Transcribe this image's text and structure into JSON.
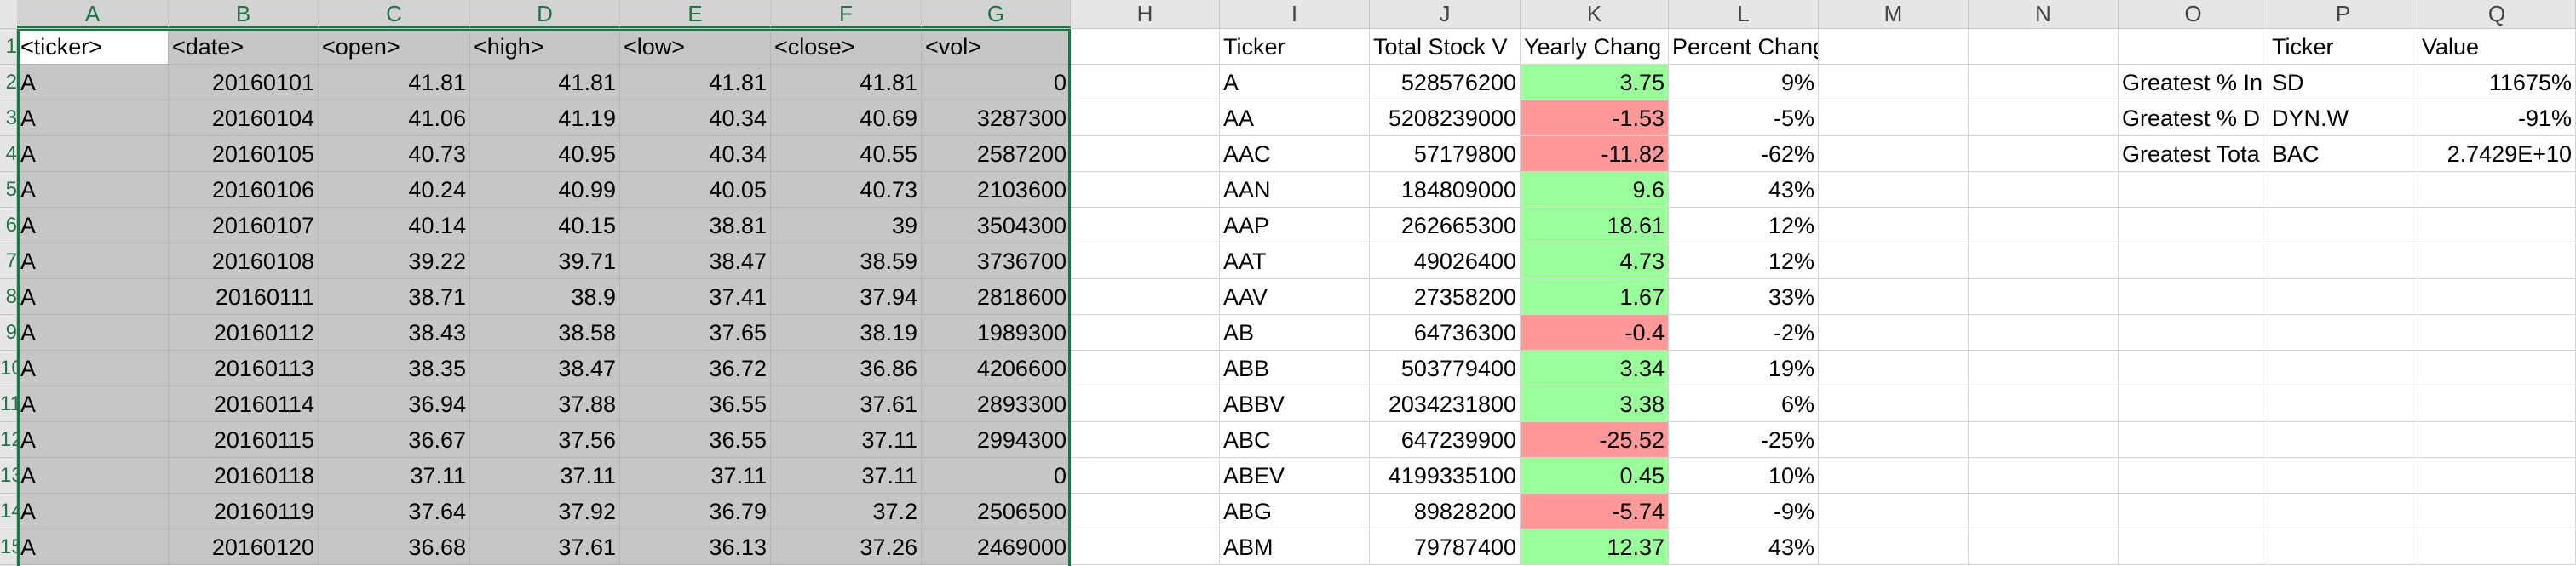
{
  "columns": [
    "A",
    "B",
    "C",
    "D",
    "E",
    "F",
    "G",
    "H",
    "I",
    "J",
    "K",
    "L",
    "M",
    "N",
    "O",
    "P",
    "Q"
  ],
  "row_numbers": [
    "1",
    "2",
    "3",
    "4",
    "5",
    "6",
    "7",
    "8",
    "9",
    "10",
    "11",
    "12",
    "13",
    "14",
    "15"
  ],
  "stock_table": {
    "headers": [
      "<ticker>",
      "<date>",
      "<open>",
      "<high>",
      "<low>",
      "<close>",
      "<vol>"
    ],
    "rows": [
      [
        "A",
        "20160101",
        "41.81",
        "41.81",
        "41.81",
        "41.81",
        "0"
      ],
      [
        "A",
        "20160104",
        "41.06",
        "41.19",
        "40.34",
        "40.69",
        "3287300"
      ],
      [
        "A",
        "20160105",
        "40.73",
        "40.95",
        "40.34",
        "40.55",
        "2587200"
      ],
      [
        "A",
        "20160106",
        "40.24",
        "40.99",
        "40.05",
        "40.73",
        "2103600"
      ],
      [
        "A",
        "20160107",
        "40.14",
        "40.15",
        "38.81",
        "39",
        "3504300"
      ],
      [
        "A",
        "20160108",
        "39.22",
        "39.71",
        "38.47",
        "38.59",
        "3736700"
      ],
      [
        "A",
        "20160111",
        "38.71",
        "38.9",
        "37.41",
        "37.94",
        "2818600"
      ],
      [
        "A",
        "20160112",
        "38.43",
        "38.58",
        "37.65",
        "38.19",
        "1989300"
      ],
      [
        "A",
        "20160113",
        "38.35",
        "38.47",
        "36.72",
        "36.86",
        "4206600"
      ],
      [
        "A",
        "20160114",
        "36.94",
        "37.88",
        "36.55",
        "37.61",
        "2893300"
      ],
      [
        "A",
        "20160115",
        "36.67",
        "37.56",
        "36.55",
        "37.11",
        "2994300"
      ],
      [
        "A",
        "20160118",
        "37.11",
        "37.11",
        "37.11",
        "37.11",
        "0"
      ],
      [
        "A",
        "20160119",
        "37.64",
        "37.92",
        "36.79",
        "37.2",
        "2506500"
      ],
      [
        "A",
        "20160120",
        "36.68",
        "37.61",
        "36.13",
        "37.26",
        "2469000"
      ]
    ]
  },
  "summary_table": {
    "headers": [
      "Ticker",
      "Total Stock V",
      "Yearly Chang",
      "Percent Change"
    ],
    "rows": [
      {
        "ticker": "A",
        "total": "528576200",
        "change": "3.75",
        "pct": "9%",
        "dir": "pos"
      },
      {
        "ticker": "AA",
        "total": "5208239000",
        "change": "-1.53",
        "pct": "-5%",
        "dir": "neg"
      },
      {
        "ticker": "AAC",
        "total": "57179800",
        "change": "-11.82",
        "pct": "-62%",
        "dir": "neg"
      },
      {
        "ticker": "AAN",
        "total": "184809000",
        "change": "9.6",
        "pct": "43%",
        "dir": "pos"
      },
      {
        "ticker": "AAP",
        "total": "262665300",
        "change": "18.61",
        "pct": "12%",
        "dir": "pos"
      },
      {
        "ticker": "AAT",
        "total": "49026400",
        "change": "4.73",
        "pct": "12%",
        "dir": "pos"
      },
      {
        "ticker": "AAV",
        "total": "27358200",
        "change": "1.67",
        "pct": "33%",
        "dir": "pos"
      },
      {
        "ticker": "AB",
        "total": "64736300",
        "change": "-0.4",
        "pct": "-2%",
        "dir": "neg"
      },
      {
        "ticker": "ABB",
        "total": "503779400",
        "change": "3.34",
        "pct": "19%",
        "dir": "pos"
      },
      {
        "ticker": "ABBV",
        "total": "2034231800",
        "change": "3.38",
        "pct": "6%",
        "dir": "pos"
      },
      {
        "ticker": "ABC",
        "total": "647239900",
        "change": "-25.52",
        "pct": "-25%",
        "dir": "neg"
      },
      {
        "ticker": "ABEV",
        "total": "4199335100",
        "change": "0.45",
        "pct": "10%",
        "dir": "pos"
      },
      {
        "ticker": "ABG",
        "total": "89828200",
        "change": "-5.74",
        "pct": "-9%",
        "dir": "neg"
      },
      {
        "ticker": "ABM",
        "total": "79787400",
        "change": "12.37",
        "pct": "43%",
        "dir": "pos"
      }
    ]
  },
  "greatest_table": {
    "headers": [
      "",
      "Ticker",
      "Value"
    ],
    "rows": [
      [
        "Greatest % In",
        "SD",
        "11675%"
      ],
      [
        "Greatest % D",
        "DYN.W",
        "-91%"
      ],
      [
        "Greatest Tota",
        "BAC",
        "2.7429E+10"
      ]
    ]
  },
  "colors": {
    "positive_fill": "#99ff99",
    "negative_fill": "#ff9999",
    "selection_fill": "#c6c6c6",
    "selection_border": "#217346"
  }
}
